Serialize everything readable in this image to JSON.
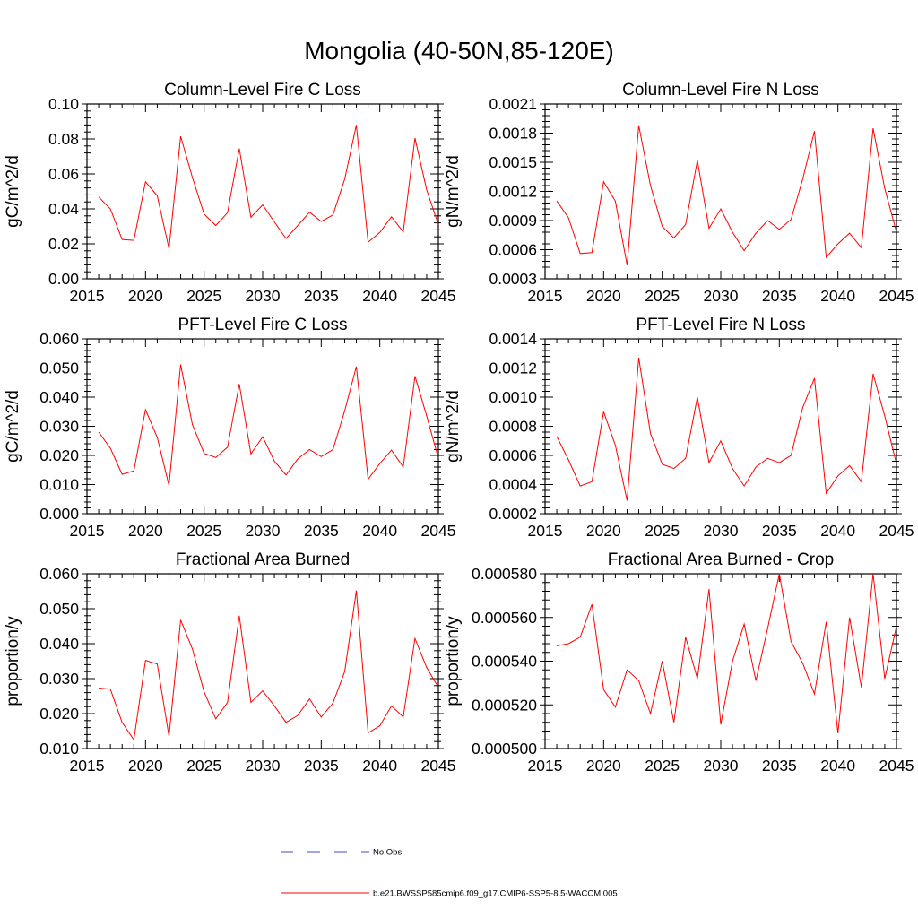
{
  "figure": {
    "title": "Mongolia (40-50N,85-120E)"
  },
  "legend": [
    {
      "label": "No Obs",
      "color": "#4b4bc8",
      "style": "dashed"
    },
    {
      "label": "b.e21.BWSSP585cmip6.f09_g17.CMIP6-SSP5-8.5-WACCM.005",
      "color": "#ff0000",
      "style": "solid"
    }
  ],
  "chart_data": [
    {
      "type": "line",
      "title": "Column-Level Fire C Loss",
      "xlabel": "",
      "ylabel": "gC/m^2/d",
      "xlim": [
        2015,
        2045
      ],
      "ylim": [
        0.0,
        0.1
      ],
      "xticks": [
        2015,
        2020,
        2025,
        2030,
        2035,
        2040,
        2045
      ],
      "xtick_labels": [
        "2015",
        "2020",
        "2025",
        "2030",
        "2035",
        "2040",
        "2045"
      ],
      "yticks": [
        0.0,
        0.02,
        0.04,
        0.06,
        0.08,
        0.1
      ],
      "ytick_labels": [
        "0.00",
        "0.02",
        "0.04",
        "0.06",
        "0.08",
        "0.10"
      ],
      "grid": false,
      "series": [
        {
          "color": "#ff0000",
          "x": [
            2016,
            2017,
            2018,
            2019,
            2020,
            2021,
            2022,
            2023,
            2024,
            2025,
            2026,
            2027,
            2028,
            2029,
            2030,
            2031,
            2032,
            2033,
            2034,
            2035,
            2036,
            2037,
            2038,
            2039,
            2040,
            2041,
            2042,
            2043,
            2044,
            2045
          ],
          "values": [
            0.0468,
            0.04,
            0.0225,
            0.022,
            0.0555,
            0.0475,
            0.0173,
            0.0815,
            0.058,
            0.037,
            0.0305,
            0.0378,
            0.0745,
            0.0352,
            0.0423,
            0.0325,
            0.023,
            0.0305,
            0.0381,
            0.0328,
            0.0365,
            0.057,
            0.088,
            0.021,
            0.0265,
            0.0355,
            0.0268,
            0.0805,
            0.051,
            0.031
          ]
        }
      ]
    },
    {
      "type": "line",
      "title": "Column-Level Fire N Loss",
      "xlabel": "",
      "ylabel": "gN/m^2/d",
      "xlim": [
        2015,
        2045
      ],
      "ylim": [
        0.0003,
        0.0021
      ],
      "xticks": [
        2015,
        2020,
        2025,
        2030,
        2035,
        2040,
        2045
      ],
      "xtick_labels": [
        "2015",
        "2020",
        "2025",
        "2030",
        "2035",
        "2040",
        "2045"
      ],
      "yticks": [
        0.0003,
        0.0006,
        0.0009,
        0.0012,
        0.0015,
        0.0018,
        0.0021
      ],
      "ytick_labels": [
        "0.0003",
        "0.0006",
        "0.0009",
        "0.0012",
        "0.0015",
        "0.0018",
        "0.0021"
      ],
      "grid": false,
      "series": [
        {
          "color": "#ff0000",
          "x": [
            2016,
            2017,
            2018,
            2019,
            2020,
            2021,
            2022,
            2023,
            2024,
            2025,
            2026,
            2027,
            2028,
            2029,
            2030,
            2031,
            2032,
            2033,
            2034,
            2035,
            2036,
            2037,
            2038,
            2039,
            2040,
            2041,
            2042,
            2043,
            2044,
            2045
          ],
          "values": [
            0.0011,
            0.00093,
            0.00056,
            0.00057,
            0.0013,
            0.0011,
            0.00044,
            0.00188,
            0.00126,
            0.00084,
            0.00072,
            0.00086,
            0.00152,
            0.00082,
            0.00102,
            0.00078,
            0.00059,
            0.00077,
            0.0009,
            0.00081,
            0.00091,
            0.00133,
            0.00182,
            0.00052,
            0.00066,
            0.00077,
            0.00062,
            0.00185,
            0.00123,
            0.00078
          ]
        }
      ]
    },
    {
      "type": "line",
      "title": "PFT-Level Fire C Loss",
      "xlabel": "",
      "ylabel": "gC/m^2/d",
      "xlim": [
        2015,
        2045
      ],
      "ylim": [
        0.0,
        0.06
      ],
      "xticks": [
        2015,
        2020,
        2025,
        2030,
        2035,
        2040,
        2045
      ],
      "xtick_labels": [
        "2015",
        "2020",
        "2025",
        "2030",
        "2035",
        "2040",
        "2045"
      ],
      "yticks": [
        0.0,
        0.01,
        0.02,
        0.03,
        0.04,
        0.05,
        0.06
      ],
      "ytick_labels": [
        "0.000",
        "0.010",
        "0.020",
        "0.030",
        "0.040",
        "0.050",
        "0.060"
      ],
      "grid": false,
      "series": [
        {
          "color": "#ff0000",
          "x": [
            2016,
            2017,
            2018,
            2019,
            2020,
            2021,
            2022,
            2023,
            2024,
            2025,
            2026,
            2027,
            2028,
            2029,
            2030,
            2031,
            2032,
            2033,
            2034,
            2035,
            2036,
            2037,
            2038,
            2039,
            2040,
            2041,
            2042,
            2043,
            2044,
            2045
          ],
          "values": [
            0.028,
            0.0225,
            0.0135,
            0.0147,
            0.0357,
            0.0262,
            0.0097,
            0.0512,
            0.0306,
            0.0207,
            0.0193,
            0.0228,
            0.0445,
            0.0205,
            0.0264,
            0.018,
            0.0133,
            0.0188,
            0.022,
            0.0196,
            0.022,
            0.0353,
            0.0505,
            0.0118,
            0.0172,
            0.0218,
            0.016,
            0.0472,
            0.0336,
            0.019
          ]
        }
      ]
    },
    {
      "type": "line",
      "title": "PFT-Level Fire N Loss",
      "xlabel": "",
      "ylabel": "gN/m^2/d",
      "xlim": [
        2015,
        2045
      ],
      "ylim": [
        0.0002,
        0.0014
      ],
      "xticks": [
        2015,
        2020,
        2025,
        2030,
        2035,
        2040,
        2045
      ],
      "xtick_labels": [
        "2015",
        "2020",
        "2025",
        "2030",
        "2035",
        "2040",
        "2045"
      ],
      "yticks": [
        0.0002,
        0.0004,
        0.0006,
        0.0008,
        0.001,
        0.0012,
        0.0014
      ],
      "ytick_labels": [
        "0.0002",
        "0.0004",
        "0.0006",
        "0.0008",
        "0.0010",
        "0.0012",
        "0.0014"
      ],
      "grid": false,
      "series": [
        {
          "color": "#ff0000",
          "x": [
            2016,
            2017,
            2018,
            2019,
            2020,
            2021,
            2022,
            2023,
            2024,
            2025,
            2026,
            2027,
            2028,
            2029,
            2030,
            2031,
            2032,
            2033,
            2034,
            2035,
            2036,
            2037,
            2038,
            2039,
            2040,
            2041,
            2042,
            2043,
            2044,
            2045
          ],
          "values": [
            0.00073,
            0.00057,
            0.00039,
            0.00042,
            0.0009,
            0.00067,
            0.00029,
            0.00127,
            0.00075,
            0.00054,
            0.00051,
            0.00058,
            0.001,
            0.00055,
            0.0007,
            0.00051,
            0.00039,
            0.00052,
            0.00058,
            0.00055,
            0.0006,
            0.00093,
            0.00113,
            0.00034,
            0.00046,
            0.00053,
            0.00042,
            0.00116,
            0.00087,
            0.00054
          ]
        }
      ]
    },
    {
      "type": "line",
      "title": "Fractional Area Burned",
      "xlabel": "",
      "ylabel": "proportion/y",
      "xlim": [
        2015,
        2045
      ],
      "ylim": [
        0.01,
        0.06
      ],
      "xticks": [
        2015,
        2020,
        2025,
        2030,
        2035,
        2040,
        2045
      ],
      "xtick_labels": [
        "2015",
        "2020",
        "2025",
        "2030",
        "2035",
        "2040",
        "2045"
      ],
      "yticks": [
        0.01,
        0.02,
        0.03,
        0.04,
        0.05,
        0.06
      ],
      "ytick_labels": [
        "0.010",
        "0.020",
        "0.030",
        "0.040",
        "0.050",
        "0.060"
      ],
      "grid": false,
      "series": [
        {
          "color": "#ff0000",
          "x": [
            2016,
            2017,
            2018,
            2019,
            2020,
            2021,
            2022,
            2023,
            2024,
            2025,
            2026,
            2027,
            2028,
            2029,
            2030,
            2031,
            2032,
            2033,
            2034,
            2035,
            2036,
            2037,
            2038,
            2039,
            2040,
            2041,
            2042,
            2043,
            2044,
            2045
          ],
          "values": [
            0.0273,
            0.027,
            0.0175,
            0.0125,
            0.0352,
            0.0342,
            0.0135,
            0.0468,
            0.0385,
            0.0262,
            0.0185,
            0.0232,
            0.048,
            0.0232,
            0.0265,
            0.0222,
            0.0175,
            0.0195,
            0.0242,
            0.019,
            0.023,
            0.032,
            0.0552,
            0.0145,
            0.0165,
            0.0222,
            0.019,
            0.0415,
            0.0332,
            0.0275
          ]
        }
      ]
    },
    {
      "type": "line",
      "title": "Fractional Area Burned - Crop",
      "xlabel": "",
      "ylabel": "proportion/y",
      "xlim": [
        2015,
        2045
      ],
      "ylim": [
        0.0005,
        0.00058
      ],
      "xticks": [
        2015,
        2020,
        2025,
        2030,
        2035,
        2040,
        2045
      ],
      "xtick_labels": [
        "2015",
        "2020",
        "2025",
        "2030",
        "2035",
        "2040",
        "2045"
      ],
      "yticks": [
        0.0005,
        0.00052,
        0.00054,
        0.00056,
        0.00058
      ],
      "ytick_labels": [
        "0.000500",
        "0.000520",
        "0.000540",
        "0.000560",
        "0.000580"
      ],
      "grid": false,
      "series": [
        {
          "color": "#ff0000",
          "x": [
            2016,
            2017,
            2018,
            2019,
            2020,
            2021,
            2022,
            2023,
            2024,
            2025,
            2026,
            2027,
            2028,
            2029,
            2030,
            2031,
            2032,
            2033,
            2034,
            2035,
            2036,
            2037,
            2038,
            2039,
            2040,
            2041,
            2042,
            2043,
            2044,
            2045
          ],
          "values": [
            0.000547,
            0.000548,
            0.000551,
            0.000566,
            0.000527,
            0.000519,
            0.000536,
            0.000531,
            0.000516,
            0.00054,
            0.000512,
            0.000551,
            0.000532,
            0.000573,
            0.000511,
            0.00054,
            0.000557,
            0.000531,
            0.000555,
            0.00058,
            0.000549,
            0.000539,
            0.000525,
            0.000558,
            0.000507,
            0.00056,
            0.000528,
            0.00058,
            0.000532,
            0.000556
          ]
        }
      ]
    }
  ]
}
